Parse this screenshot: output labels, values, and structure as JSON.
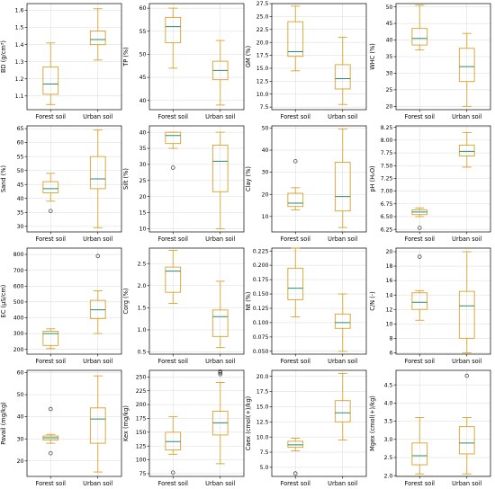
{
  "chart_data": [
    {
      "type": "box",
      "ylabel": "BD (g/cm³)",
      "ylim": [
        1.02,
        1.64
      ],
      "ticks": [
        1.1,
        1.2,
        1.3,
        1.4,
        1.5,
        1.6
      ],
      "ticklabels": [
        "1.1",
        "1.2",
        "1.3",
        "1.4",
        "1.5",
        "1.6"
      ],
      "categories": [
        "Forest soil",
        "Urban soil"
      ],
      "boxes": [
        {
          "min": 1.05,
          "q1": 1.11,
          "med": 1.17,
          "q3": 1.27,
          "max": 1.41,
          "fliers": []
        },
        {
          "min": 1.31,
          "q1": 1.4,
          "med": 1.43,
          "q3": 1.48,
          "max": 1.61,
          "fliers": []
        }
      ]
    },
    {
      "type": "box",
      "ylabel": "TP (%)",
      "ylim": [
        38,
        61
      ],
      "ticks": [
        40,
        45,
        50,
        55,
        60
      ],
      "ticklabels": [
        "40",
        "45",
        "50",
        "55",
        "60"
      ],
      "categories": [
        "Forest soil",
        "Urban soil"
      ],
      "boxes": [
        {
          "min": 47,
          "q1": 52.5,
          "med": 56,
          "q3": 58,
          "max": 60,
          "fliers": []
        },
        {
          "min": 39,
          "q1": 44.5,
          "med": 46.5,
          "q3": 48.5,
          "max": 53,
          "fliers": []
        }
      ]
    },
    {
      "type": "box",
      "ylabel": "GM (%)",
      "ylim": [
        7,
        27.5
      ],
      "ticks": [
        7.5,
        10,
        12.5,
        15,
        17.5,
        20,
        22.5,
        25,
        27.5
      ],
      "ticklabels": [
        "7.5",
        "10.0",
        "12.5",
        "15.0",
        "17.5",
        "20.0",
        "22.5",
        "25.0",
        "27.5"
      ],
      "categories": [
        "Forest soil",
        "Urban soil"
      ],
      "boxes": [
        {
          "min": 14.5,
          "q1": 17.3,
          "med": 18.2,
          "q3": 24,
          "max": 27,
          "fliers": []
        },
        {
          "min": 8,
          "q1": 11,
          "med": 13,
          "q3": 15.7,
          "max": 21,
          "fliers": []
        }
      ]
    },
    {
      "type": "box",
      "ylabel": "WHC (%)",
      "ylim": [
        19,
        51
      ],
      "ticks": [
        20,
        25,
        30,
        35,
        40,
        45,
        50
      ],
      "ticklabels": [
        "20",
        "25",
        "30",
        "35",
        "40",
        "45",
        "50"
      ],
      "categories": [
        "Forest soil",
        "Urban soil"
      ],
      "boxes": [
        {
          "min": 37,
          "q1": 38.5,
          "med": 40.5,
          "q3": 43.5,
          "max": 50.5,
          "fliers": []
        },
        {
          "min": 20,
          "q1": 27.5,
          "med": 32,
          "q3": 37.5,
          "max": 42,
          "fliers": []
        }
      ]
    },
    {
      "type": "box",
      "ylabel": "Sand (%)",
      "ylim": [
        28,
        66
      ],
      "ticks": [
        30,
        35,
        40,
        45,
        50,
        55,
        60,
        65
      ],
      "ticklabels": [
        "30",
        "35",
        "40",
        "45",
        "50",
        "55",
        "60",
        "65"
      ],
      "categories": [
        "Forest soil",
        "Urban soil"
      ],
      "boxes": [
        {
          "min": 39,
          "q1": 42,
          "med": 43.5,
          "q3": 46,
          "max": 49,
          "fliers": [
            35.5
          ]
        },
        {
          "min": 29.5,
          "q1": 43.5,
          "med": 47,
          "q3": 55,
          "max": 64.5,
          "fliers": []
        }
      ]
    },
    {
      "type": "box",
      "ylabel": "Silt (%)",
      "ylim": [
        9,
        42
      ],
      "ticks": [
        10,
        15,
        20,
        25,
        30,
        35,
        40
      ],
      "ticklabels": [
        "10",
        "15",
        "20",
        "25",
        "30",
        "35",
        "40"
      ],
      "categories": [
        "Forest soil",
        "Urban soil"
      ],
      "boxes": [
        {
          "min": 35,
          "q1": 36.5,
          "med": 39,
          "q3": 40,
          "max": 40,
          "fliers": [
            29
          ]
        },
        {
          "min": 10,
          "q1": 21.5,
          "med": 31,
          "q3": 36,
          "max": 40,
          "fliers": []
        }
      ]
    },
    {
      "type": "box",
      "ylabel": "Clay (%)",
      "ylim": [
        3,
        51
      ],
      "ticks": [
        10,
        20,
        30,
        40,
        50
      ],
      "ticklabels": [
        "10",
        "20",
        "30",
        "40",
        "50"
      ],
      "categories": [
        "Forest soil",
        "Urban soil"
      ],
      "boxes": [
        {
          "min": 13,
          "q1": 14.5,
          "med": 16,
          "q3": 20.5,
          "max": 23,
          "fliers": [
            35
          ]
        },
        {
          "min": 5,
          "q1": 12.5,
          "med": 19,
          "q3": 34.5,
          "max": 49.5,
          "fliers": []
        }
      ]
    },
    {
      "type": "box",
      "ylabel": "pH (H₂O)",
      "ylim": [
        6.2,
        8.28
      ],
      "ticks": [
        6.25,
        6.5,
        6.75,
        7.0,
        7.25,
        7.5,
        7.75,
        8.0,
        8.25
      ],
      "ticklabels": [
        "6.25",
        "6.50",
        "6.75",
        "7.00",
        "7.25",
        "7.50",
        "7.75",
        "8.00",
        "8.25"
      ],
      "categories": [
        "Forest soil",
        "Urban soil"
      ],
      "boxes": [
        {
          "min": 6.5,
          "q1": 6.54,
          "med": 6.59,
          "q3": 6.63,
          "max": 6.67,
          "fliers": [
            6.28
          ]
        },
        {
          "min": 7.47,
          "q1": 7.69,
          "med": 7.78,
          "q3": 7.9,
          "max": 8.15,
          "fliers": []
        }
      ]
    },
    {
      "type": "box",
      "ylabel": "EC (μS/cm)",
      "ylim": [
        170,
        840
      ],
      "ticks": [
        200,
        300,
        400,
        500,
        600,
        700,
        800
      ],
      "ticklabels": [
        "200",
        "300",
        "400",
        "500",
        "600",
        "700",
        "800"
      ],
      "categories": [
        "Forest soil",
        "Urban soil"
      ],
      "boxes": [
        {
          "min": 205,
          "q1": 225,
          "med": 300,
          "q3": 315,
          "max": 330,
          "fliers": []
        },
        {
          "min": 300,
          "q1": 395,
          "med": 450,
          "q3": 510,
          "max": 570,
          "fliers": [
            790
          ]
        }
      ]
    },
    {
      "type": "box",
      "ylabel": "Corg (%)",
      "ylim": [
        0.45,
        2.85
      ],
      "ticks": [
        0.5,
        1.0,
        1.5,
        2.0,
        2.5
      ],
      "ticklabels": [
        "0.5",
        "1.0",
        "1.5",
        "2.0",
        "2.5"
      ],
      "categories": [
        "Forest soil",
        "Urban soil"
      ],
      "boxes": [
        {
          "min": 1.6,
          "q1": 1.85,
          "med": 2.33,
          "q3": 2.42,
          "max": 2.8,
          "fliers": []
        },
        {
          "min": 0.6,
          "q1": 0.85,
          "med": 1.3,
          "q3": 1.45,
          "max": 2.1,
          "fliers": []
        }
      ]
    },
    {
      "type": "box",
      "ylabel": "Nt (%)",
      "ylim": [
        0.045,
        0.23
      ],
      "ticks": [
        0.05,
        0.075,
        0.1,
        0.125,
        0.15,
        0.175,
        0.2,
        0.225
      ],
      "ticklabels": [
        "0.050",
        "0.075",
        "0.100",
        "0.125",
        "0.150",
        "0.175",
        "0.200",
        "0.225"
      ],
      "categories": [
        "Forest soil",
        "Urban soil"
      ],
      "boxes": [
        {
          "min": 0.11,
          "q1": 0.14,
          "med": 0.16,
          "q3": 0.195,
          "max": 0.23,
          "fliers": []
        },
        {
          "min": 0.05,
          "q1": 0.09,
          "med": 0.1,
          "q3": 0.115,
          "max": 0.15,
          "fliers": []
        }
      ]
    },
    {
      "type": "box",
      "ylabel": "C/N (-)",
      "ylim": [
        5.8,
        20.5
      ],
      "ticks": [
        6,
        8,
        10,
        12,
        14,
        16,
        18,
        20
      ],
      "ticklabels": [
        "6",
        "8",
        "10",
        "12",
        "14",
        "16",
        "18",
        "20"
      ],
      "categories": [
        "Forest soil",
        "Urban soil"
      ],
      "boxes": [
        {
          "min": 10.5,
          "q1": 12,
          "med": 13,
          "q3": 14.3,
          "max": 14.6,
          "fliers": [
            19.3
          ]
        },
        {
          "min": 6,
          "q1": 8,
          "med": 12.5,
          "q3": 14.5,
          "max": 20,
          "fliers": []
        }
      ]
    },
    {
      "type": "box",
      "ylabel": "Pavail (mg/kg)",
      "ylim": [
        13,
        61
      ],
      "ticks": [
        20,
        30,
        40,
        50,
        60
      ],
      "ticklabels": [
        "20",
        "30",
        "40",
        "50",
        "60"
      ],
      "categories": [
        "Forest soil",
        "Urban soil"
      ],
      "boxes": [
        {
          "min": 28,
          "q1": 29.5,
          "med": 30.5,
          "q3": 31.3,
          "max": 32,
          "fliers": [
            43.5,
            23.5
          ]
        },
        {
          "min": 15,
          "q1": 28,
          "med": 39,
          "q3": 44,
          "max": 58.5,
          "fliers": []
        }
      ]
    },
    {
      "type": "box",
      "ylabel": "Kex (mg/kg)",
      "ylim": [
        70,
        262
      ],
      "ticks": [
        75,
        100,
        125,
        150,
        175,
        200,
        225,
        250
      ],
      "ticklabels": [
        "75",
        "100",
        "125",
        "150",
        "175",
        "200",
        "225",
        "250"
      ],
      "categories": [
        "Forest soil",
        "Urban soil"
      ],
      "boxes": [
        {
          "min": 110,
          "q1": 118,
          "med": 133,
          "q3": 150,
          "max": 178,
          "fliers": [
            77
          ]
        },
        {
          "min": 93,
          "q1": 145,
          "med": 167,
          "q3": 188,
          "max": 240,
          "fliers": [
            255,
            258,
            260
          ]
        }
      ]
    },
    {
      "type": "box",
      "ylabel": "Caex (cmol(+)/kg)",
      "ylim": [
        3.5,
        21
      ],
      "ticks": [
        5,
        7.5,
        10,
        12.5,
        15,
        17.5,
        20
      ],
      "ticklabels": [
        "5.0",
        "7.5",
        "10.0",
        "12.5",
        "15.0",
        "17.5",
        "20.0"
      ],
      "categories": [
        "Forest soil",
        "Urban soil"
      ],
      "boxes": [
        {
          "min": 7.7,
          "q1": 8.3,
          "med": 8.7,
          "q3": 9.3,
          "max": 9.8,
          "fliers": [
            4
          ]
        },
        {
          "min": 9.5,
          "q1": 12.5,
          "med": 14,
          "q3": 16,
          "max": 20.5,
          "fliers": []
        }
      ]
    },
    {
      "type": "box",
      "ylabel": "Mgex (cmol(+)/kg)",
      "ylim": [
        1.98,
        4.9
      ],
      "ticks": [
        2.0,
        2.5,
        3.0,
        3.5,
        4.0,
        4.5
      ],
      "ticklabels": [
        "2.0",
        "2.5",
        "3.0",
        "3.5",
        "4.0",
        "4.5"
      ],
      "categories": [
        "Forest soil",
        "Urban soil"
      ],
      "boxes": [
        {
          "min": 2.05,
          "q1": 2.3,
          "med": 2.55,
          "q3": 2.9,
          "max": 3.6,
          "fliers": []
        },
        {
          "min": 2.05,
          "q1": 2.6,
          "med": 2.9,
          "q3": 3.35,
          "max": 3.6,
          "fliers": [
            4.75
          ]
        }
      ]
    }
  ]
}
